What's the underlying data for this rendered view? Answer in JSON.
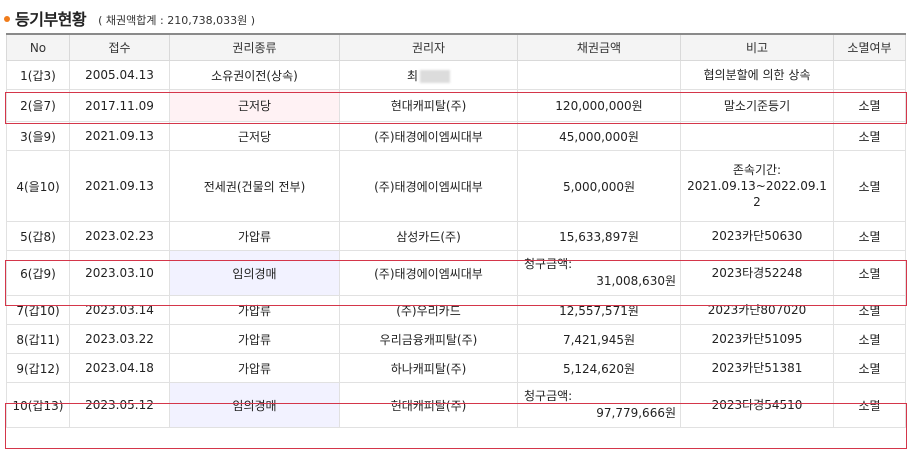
{
  "header": {
    "title": "등기부현황",
    "subtitle": "( 채권액합계 : 210,738,033원 )"
  },
  "columns": [
    "No",
    "접수",
    "권리종류",
    "권리자",
    "채권금액",
    "비고",
    "소멸여부"
  ],
  "rows": [
    {
      "no": "1(갑3)",
      "date": "2005.04.13",
      "type": "소유권이전(상속)",
      "holder": "최",
      "amount": "",
      "note": "협의분할에 의한 상속",
      "ext": ""
    },
    {
      "no": "2(을7)",
      "date": "2017.11.09",
      "type": "근저당",
      "holder": "현대캐피탈(주)",
      "amount": "120,000,000원",
      "note": "말소기준등기",
      "ext": "소멸"
    },
    {
      "no": "3(을9)",
      "date": "2021.09.13",
      "type": "근저당",
      "holder": "(주)태경에이엠씨대부",
      "amount": "45,000,000원",
      "note": "",
      "ext": "소멸"
    },
    {
      "no": "4(을10)",
      "date": "2021.09.13",
      "type": "전세권(건물의 전부)",
      "holder": "(주)태경에이엠씨대부",
      "amount": "5,000,000원",
      "note": "존속기간:\n2021.09.13~2022.09.1\n2",
      "ext": "소멸"
    },
    {
      "no": "5(갑8)",
      "date": "2023.02.23",
      "type": "가압류",
      "holder": "삼성카드(주)",
      "amount": "15,633,897원",
      "note": "2023카단50630",
      "ext": "소멸"
    },
    {
      "no": "6(갑9)",
      "date": "2023.03.10",
      "type": "임의경매",
      "holder": "(주)태경에이엠씨대부",
      "amount_label": "청구금액:",
      "amount": "31,008,630원",
      "note": "2023타경52248",
      "ext": "소멸"
    },
    {
      "no": "7(갑10)",
      "date": "2023.03.14",
      "type": "가압류",
      "holder": "(주)우리카드",
      "amount": "12,557,571원",
      "note": "2023카단807020",
      "ext": "소멸"
    },
    {
      "no": "8(갑11)",
      "date": "2023.03.22",
      "type": "가압류",
      "holder": "우리금융캐피탈(주)",
      "amount": "7,421,945원",
      "note": "2023카단51095",
      "ext": "소멸"
    },
    {
      "no": "9(갑12)",
      "date": "2023.04.18",
      "type": "가압류",
      "holder": "하나캐피탈(주)",
      "amount": "5,124,620원",
      "note": "2023카단51381",
      "ext": "소멸"
    },
    {
      "no": "10(갑13)",
      "date": "2023.05.12",
      "type": "임의경매",
      "holder": "현대캐피탈(주)",
      "amount_label": "청구금액:",
      "amount": "97,779,666원",
      "note": "2023타경54510",
      "ext": "소멸"
    }
  ],
  "colors": {
    "bullet": "#f07c1b",
    "highlight_border": "#d4364a",
    "pink_cell": "#fff2f4",
    "lavender_cell": "#f2f2ff"
  }
}
